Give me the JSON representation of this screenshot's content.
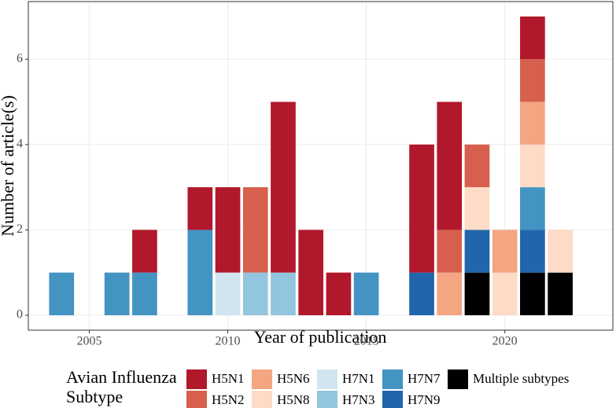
{
  "chart_data": {
    "type": "bar",
    "stacked": true,
    "x_label": "Year of publication",
    "y_label": "Number of article(s)",
    "legend_title": [
      "Avian Influenza",
      "Subtype"
    ],
    "legend_position": "bottom",
    "x": [
      2004,
      2006,
      2007,
      2009,
      2010,
      2011,
      2012,
      2013,
      2014,
      2015,
      2017,
      2018,
      2019,
      2020,
      2021,
      2022
    ],
    "series": [
      {
        "name": "H5N1",
        "color": "#b2182b",
        "values": [
          null,
          null,
          1,
          1,
          2,
          null,
          4,
          2,
          1,
          null,
          3,
          3,
          null,
          null,
          1,
          null
        ]
      },
      {
        "name": "H5N2",
        "color": "#d6604d",
        "values": [
          null,
          null,
          null,
          null,
          null,
          2,
          null,
          null,
          null,
          null,
          null,
          1,
          1,
          null,
          1,
          null
        ]
      },
      {
        "name": "H5N6",
        "color": "#f4a582",
        "values": [
          null,
          null,
          null,
          null,
          null,
          null,
          null,
          null,
          null,
          null,
          null,
          1,
          null,
          1,
          1,
          null
        ]
      },
      {
        "name": "H5N8",
        "color": "#fddbc7",
        "values": [
          null,
          null,
          null,
          null,
          null,
          null,
          null,
          null,
          null,
          null,
          null,
          null,
          1,
          1,
          1,
          1
        ]
      },
      {
        "name": "H7N1",
        "color": "#d1e5f0",
        "values": [
          null,
          null,
          null,
          null,
          1,
          null,
          null,
          null,
          null,
          null,
          null,
          null,
          null,
          null,
          null,
          null
        ]
      },
      {
        "name": "H7N3",
        "color": "#92c5de",
        "values": [
          null,
          null,
          null,
          null,
          null,
          1,
          1,
          null,
          null,
          null,
          null,
          null,
          null,
          null,
          null,
          null
        ]
      },
      {
        "name": "H7N7",
        "color": "#4393c3",
        "values": [
          1,
          1,
          1,
          2,
          null,
          null,
          null,
          null,
          null,
          1,
          null,
          null,
          null,
          null,
          1,
          null
        ]
      },
      {
        "name": "H7N9",
        "color": "#2166ac",
        "values": [
          null,
          null,
          null,
          null,
          null,
          null,
          null,
          null,
          null,
          null,
          1,
          null,
          1,
          null,
          1,
          null
        ]
      },
      {
        "name": "Multiple subtypes",
        "color": "#000000",
        "values": [
          null,
          null,
          null,
          null,
          null,
          null,
          null,
          null,
          null,
          null,
          null,
          null,
          1,
          null,
          1,
          1
        ]
      }
    ],
    "xlim": [
      2002.8,
      2023.9
    ],
    "xticks": [
      2005,
      2010,
      2015,
      2020
    ],
    "ylim": [
      -0.35,
      7.35
    ],
    "yticks": [
      0,
      2,
      4,
      6
    ],
    "grid": true
  }
}
